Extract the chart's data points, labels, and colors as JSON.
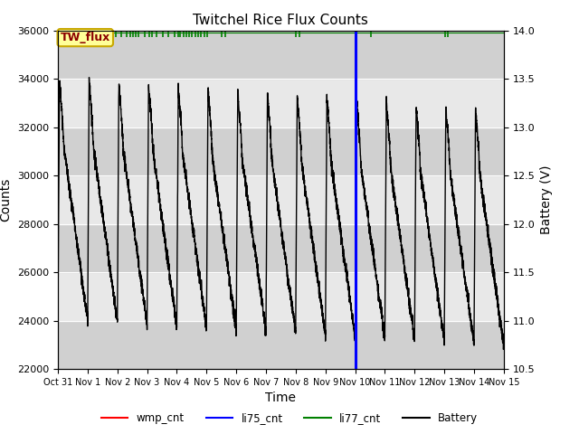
{
  "title": "Twitchel Rice Flux Counts",
  "xlabel": "Time",
  "ylabel_left": "Counts",
  "ylabel_right": "Battery (V)",
  "ylim_left": [
    22000,
    36000
  ],
  "ylim_right": [
    10.5,
    14.0
  ],
  "yticks_left": [
    22000,
    24000,
    26000,
    28000,
    30000,
    32000,
    34000,
    36000
  ],
  "yticks_right": [
    10.5,
    11.0,
    11.5,
    12.0,
    12.5,
    13.0,
    13.5,
    14.0
  ],
  "xtick_labels": [
    "Oct 31",
    "Nov 1",
    "Nov 2",
    "Nov 3",
    "Nov 4",
    "Nov 5",
    "Nov 6",
    "Nov 7",
    "Nov 8",
    "Nov 9",
    "Nov 10",
    "Nov 11",
    "Nov 12",
    "Nov 13",
    "Nov 14",
    "Nov 15"
  ],
  "vline_x": 10.0,
  "vline_color": "#0000ff",
  "annotation_box_text": "TW_flux",
  "band_light": "#e8e8e8",
  "band_dark": "#d0d0d0",
  "background_color": "#e0e0e0",
  "li77_x": [
    0.05,
    0.12,
    0.55,
    0.72,
    0.92,
    1.15,
    1.38,
    1.62,
    1.78,
    1.95,
    2.12,
    2.32,
    2.42,
    2.52,
    2.62,
    2.72,
    2.92,
    3.08,
    3.18,
    3.32,
    3.52,
    3.72,
    3.92,
    4.05,
    4.12,
    4.22,
    4.32,
    4.42,
    4.52,
    4.62,
    4.72,
    4.82,
    4.92,
    5.02,
    5.52,
    5.62,
    8.02,
    8.12,
    10.52,
    13.02,
    13.12
  ],
  "figsize": [
    6.4,
    4.8
  ],
  "dpi": 100
}
